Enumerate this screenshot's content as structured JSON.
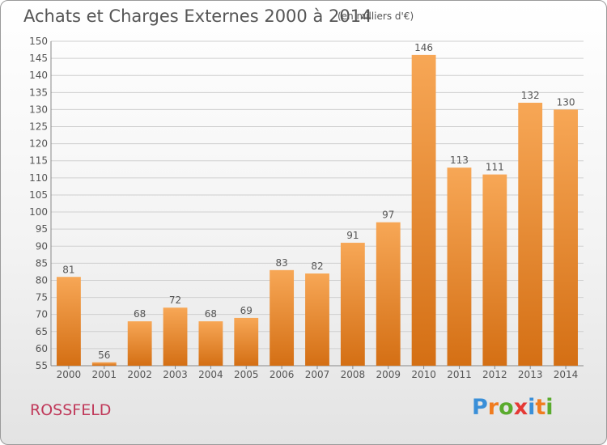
{
  "title": "Achats et Charges Externes 2000 à 2014",
  "subtitle": "(en milliers d'€)",
  "commune": "ROSSFELD",
  "brand": {
    "text": "Proxiti",
    "colors": [
      "#3a8fd8",
      "#f07c1f",
      "#5aab2e",
      "#e53935",
      "#3a8fd8",
      "#f07c1f",
      "#5aab2e"
    ]
  },
  "colors": {
    "bar_top": "#f7a756",
    "bar_bottom": "#d46f14",
    "text": "#555555",
    "grid": "#cfcfcf"
  },
  "chart_data": {
    "type": "bar",
    "categories": [
      "2000",
      "2001",
      "2002",
      "2003",
      "2004",
      "2005",
      "2006",
      "2007",
      "2008",
      "2009",
      "2010",
      "2011",
      "2012",
      "2013",
      "2014"
    ],
    "values": [
      81,
      56,
      68,
      72,
      68,
      69,
      83,
      82,
      91,
      97,
      146,
      113,
      111,
      132,
      130
    ],
    "ylim": [
      55,
      150
    ],
    "yticks": [
      55,
      60,
      65,
      70,
      75,
      80,
      85,
      90,
      95,
      100,
      105,
      110,
      115,
      120,
      125,
      130,
      135,
      140,
      145,
      150
    ],
    "grid": true,
    "data_labels": true
  }
}
